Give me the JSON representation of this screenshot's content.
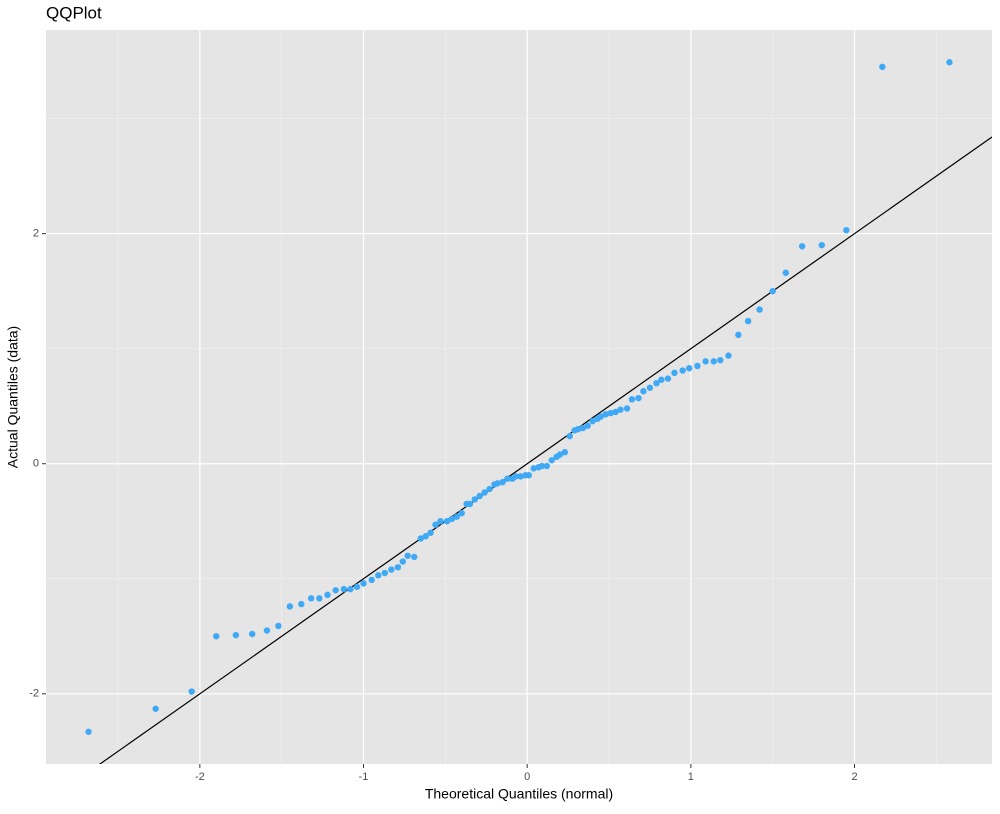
{
  "chart_data": {
    "type": "scatter",
    "title": "QQPlot",
    "x_label": "Theoretical Quantiles (normal)",
    "y_label": "Actual Quantiles (data)",
    "color": "#3fa9f5",
    "x": [
      -2.68,
      -2.27,
      -2.05,
      -1.9,
      -1.78,
      -1.68,
      -1.59,
      -1.52,
      -1.45,
      -1.38,
      -1.32,
      -1.27,
      -1.22,
      -1.17,
      -1.12,
      -1.08,
      -1.04,
      -1.0,
      -0.95,
      -0.91,
      -0.87,
      -0.83,
      -0.79,
      -0.76,
      -0.73,
      -0.69,
      -0.65,
      -0.62,
      -0.59,
      -0.56,
      -0.53,
      -0.49,
      -0.46,
      -0.43,
      -0.4,
      -0.37,
      -0.35,
      -0.32,
      -0.29,
      -0.26,
      -0.23,
      -0.2,
      -0.18,
      -0.15,
      -0.12,
      -0.09,
      -0.07,
      -0.04,
      -0.01,
      0.01,
      0.04,
      0.07,
      0.09,
      0.12,
      0.15,
      0.18,
      0.2,
      0.23,
      0.26,
      0.29,
      0.31,
      0.34,
      0.37,
      0.4,
      0.43,
      0.45,
      0.48,
      0.51,
      0.54,
      0.57,
      0.61,
      0.64,
      0.68,
      0.71,
      0.75,
      0.79,
      0.82,
      0.86,
      0.9,
      0.95,
      0.99,
      1.04,
      1.09,
      1.14,
      1.18,
      1.23,
      1.29,
      1.35,
      1.42,
      1.5,
      1.58,
      1.68,
      1.8,
      1.95,
      2.17,
      2.58
    ],
    "values": [
      -2.33,
      -2.13,
      -1.98,
      -1.5,
      -1.49,
      -1.48,
      -1.45,
      -1.41,
      -1.24,
      -1.22,
      -1.17,
      -1.17,
      -1.14,
      -1.1,
      -1.09,
      -1.09,
      -1.07,
      -1.04,
      -1.01,
      -0.97,
      -0.95,
      -0.92,
      -0.9,
      -0.85,
      -0.8,
      -0.81,
      -0.65,
      -0.63,
      -0.6,
      -0.53,
      -0.5,
      -0.5,
      -0.48,
      -0.46,
      -0.43,
      -0.35,
      -0.35,
      -0.31,
      -0.28,
      -0.25,
      -0.22,
      -0.18,
      -0.17,
      -0.16,
      -0.13,
      -0.13,
      -0.11,
      -0.11,
      -0.1,
      -0.1,
      -0.04,
      -0.03,
      -0.02,
      -0.02,
      0.03,
      0.06,
      0.08,
      0.1,
      0.24,
      0.29,
      0.3,
      0.31,
      0.33,
      0.37,
      0.39,
      0.41,
      0.43,
      0.44,
      0.45,
      0.47,
      0.48,
      0.56,
      0.57,
      0.63,
      0.66,
      0.7,
      0.73,
      0.74,
      0.79,
      0.81,
      0.83,
      0.85,
      0.89,
      0.89,
      0.9,
      0.94,
      1.12,
      1.24,
      1.34,
      1.5,
      1.66,
      1.89,
      1.9,
      2.03,
      3.45,
      3.49
    ],
    "reference_line": {
      "slope": 1,
      "intercept": 0,
      "color": "#000000"
    },
    "xlim": [
      -2.94,
      2.84
    ],
    "ylim": [
      -2.61,
      3.77
    ],
    "xticks": [
      -2,
      -1,
      0,
      1,
      2
    ],
    "yticks": [
      -2,
      0,
      2
    ],
    "grid": true
  }
}
